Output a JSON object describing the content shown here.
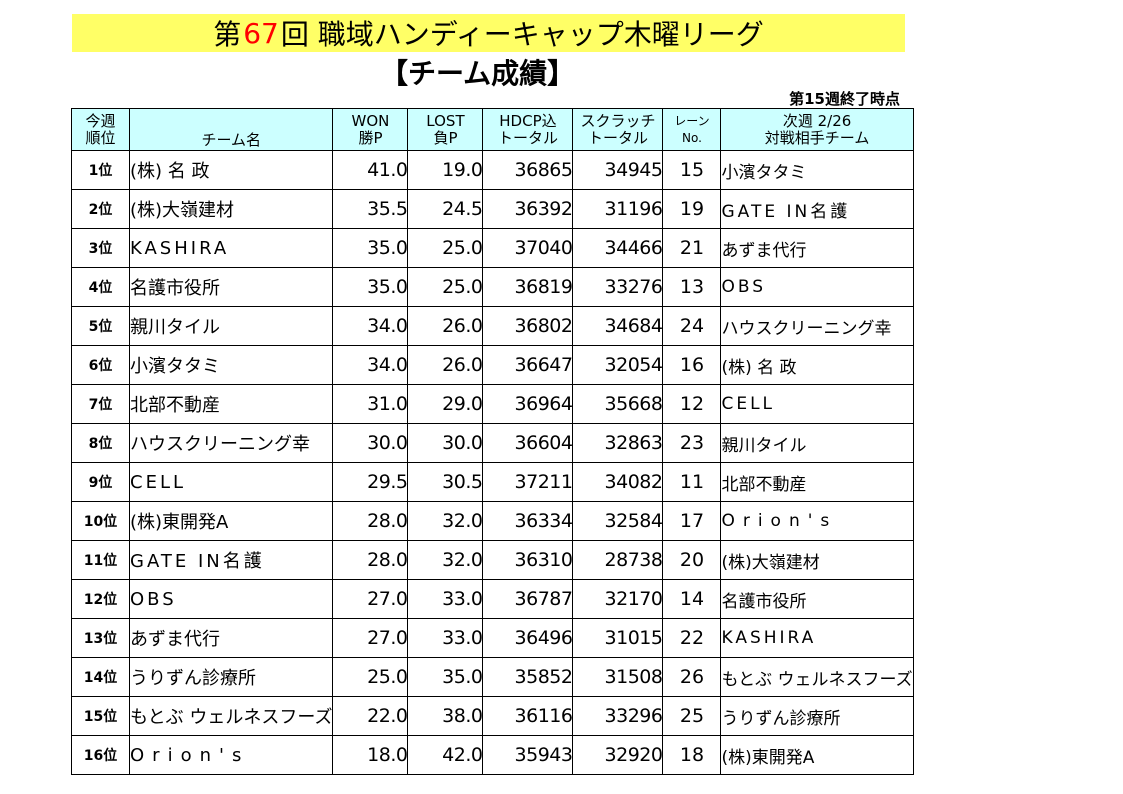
{
  "title": {
    "prefix": "第",
    "number": "67",
    "suffix": "回 職域ハンディーキャップ木曜リーグ",
    "number_color": "#ff0000",
    "background": "#ffff66"
  },
  "subtitle": "【チーム成績】",
  "as_of": "第15週終了時点",
  "header": {
    "rank": [
      "今週",
      "順位"
    ],
    "team": "チーム名",
    "won": [
      "WON",
      "勝P"
    ],
    "lost": [
      "LOST",
      "負P"
    ],
    "hdcp": [
      "HDCP込",
      "トータル"
    ],
    "scratch": [
      "スクラッチ",
      "トータル"
    ],
    "lane": [
      "レーン",
      "No."
    ],
    "next": [
      "次週 2/26",
      "対戦相手チーム"
    ],
    "background": "#ccffff"
  },
  "rows": [
    {
      "rank": "1位",
      "team": "(株) 名 政",
      "won": "41.0",
      "lost": "19.0",
      "hdcp": "36865",
      "scratch": "34945",
      "lane": "15",
      "opponent": "小濱タタミ"
    },
    {
      "rank": "2位",
      "team": "(株)大嶺建材",
      "won": "35.5",
      "lost": "24.5",
      "hdcp": "36392",
      "scratch": "31196",
      "lane": "19",
      "opponent": "GATE IN名護"
    },
    {
      "rank": "3位",
      "team": "KASHIRA",
      "won": "35.0",
      "lost": "25.0",
      "hdcp": "37040",
      "scratch": "34466",
      "lane": "21",
      "opponent": "あずま代行"
    },
    {
      "rank": "4位",
      "team": "名護市役所",
      "won": "35.0",
      "lost": "25.0",
      "hdcp": "36819",
      "scratch": "33276",
      "lane": "13",
      "opponent": "OBS"
    },
    {
      "rank": "5位",
      "team": "親川タイル",
      "won": "34.0",
      "lost": "26.0",
      "hdcp": "36802",
      "scratch": "34684",
      "lane": "24",
      "opponent": "ハウスクリーニング幸"
    },
    {
      "rank": "6位",
      "team": "小濱タタミ",
      "won": "34.0",
      "lost": "26.0",
      "hdcp": "36647",
      "scratch": "32054",
      "lane": "16",
      "opponent": "(株) 名 政"
    },
    {
      "rank": "7位",
      "team": "北部不動産",
      "won": "31.0",
      "lost": "29.0",
      "hdcp": "36964",
      "scratch": "35668",
      "lane": "12",
      "opponent": "CELL"
    },
    {
      "rank": "8位",
      "team": "ハウスクリーニング幸",
      "won": "30.0",
      "lost": "30.0",
      "hdcp": "36604",
      "scratch": "32863",
      "lane": "23",
      "opponent": "親川タイル"
    },
    {
      "rank": "9位",
      "team": "CELL",
      "won": "29.5",
      "lost": "30.5",
      "hdcp": "37211",
      "scratch": "34082",
      "lane": "11",
      "opponent": "北部不動産"
    },
    {
      "rank": "10位",
      "team": "(株)東開発A",
      "won": "28.0",
      "lost": "32.0",
      "hdcp": "36334",
      "scratch": "32584",
      "lane": "17",
      "opponent": "Orion's"
    },
    {
      "rank": "11位",
      "team": "GATE IN名護",
      "won": "28.0",
      "lost": "32.0",
      "hdcp": "36310",
      "scratch": "28738",
      "lane": "20",
      "opponent": "(株)大嶺建材"
    },
    {
      "rank": "12位",
      "team": "OBS",
      "won": "27.0",
      "lost": "33.0",
      "hdcp": "36787",
      "scratch": "32170",
      "lane": "14",
      "opponent": "名護市役所"
    },
    {
      "rank": "13位",
      "team": "あずま代行",
      "won": "27.0",
      "lost": "33.0",
      "hdcp": "36496",
      "scratch": "31015",
      "lane": "22",
      "opponent": "KASHIRA"
    },
    {
      "rank": "14位",
      "team": "うりずん診療所",
      "won": "25.0",
      "lost": "35.0",
      "hdcp": "35852",
      "scratch": "31508",
      "lane": "26",
      "opponent": "もとぶ ウェルネスフーズ"
    },
    {
      "rank": "15位",
      "team": "もとぶ ウェルネスフーズ",
      "won": "22.0",
      "lost": "38.0",
      "hdcp": "36116",
      "scratch": "33296",
      "lane": "25",
      "opponent": "うりずん診療所"
    },
    {
      "rank": "16位",
      "team": "Orion's",
      "won": "18.0",
      "lost": "42.0",
      "hdcp": "35943",
      "scratch": "32920",
      "lane": "18",
      "opponent": "(株)東開発A"
    }
  ]
}
